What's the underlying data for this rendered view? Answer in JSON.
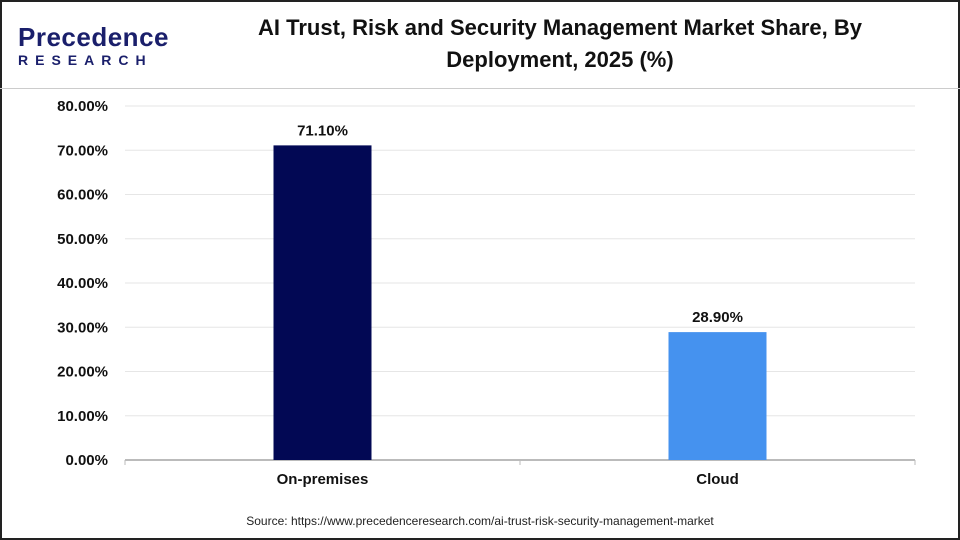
{
  "logo": {
    "text": "Precedence",
    "subtext": "RESEARCH"
  },
  "title_line1": "AI Trust, Risk and Security Management Market Share, By",
  "title_line2": "Deployment, 2025 (%)",
  "source": "Source: https://www.precedenceresearch.com/ai-trust-risk-security-management-market",
  "chart_data": {
    "type": "bar",
    "title": "AI Trust, Risk and Security Management Market Share, By Deployment, 2025 (%)",
    "categories": [
      "On-premises",
      "Cloud"
    ],
    "values": [
      71.1,
      28.9
    ],
    "data_labels": [
      "71.10%",
      "28.90%"
    ],
    "colors": [
      "#020854",
      "#4592ef"
    ],
    "ylim": [
      0,
      80
    ],
    "yticks": [
      "0.00%",
      "10.00%",
      "20.00%",
      "30.00%",
      "40.00%",
      "50.00%",
      "60.00%",
      "70.00%",
      "80.00%"
    ],
    "grid": true,
    "xlabel": "",
    "ylabel": ""
  }
}
